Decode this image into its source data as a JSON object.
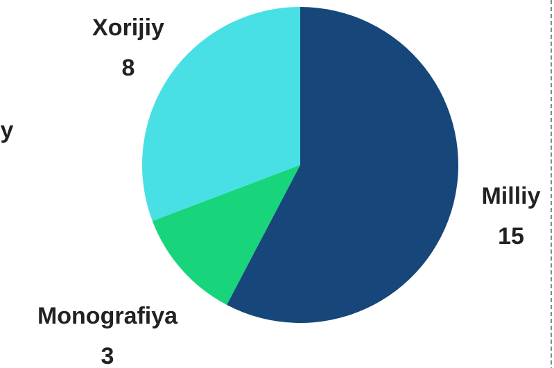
{
  "chart_data": {
    "type": "pie",
    "categories": [
      "Milliy",
      "Monografiya",
      "Xorijiy"
    ],
    "values": [
      15,
      3,
      8
    ],
    "colors": [
      "#16467a",
      "#18d47b",
      "#48e0e4"
    ]
  },
  "clipped_label": "y"
}
